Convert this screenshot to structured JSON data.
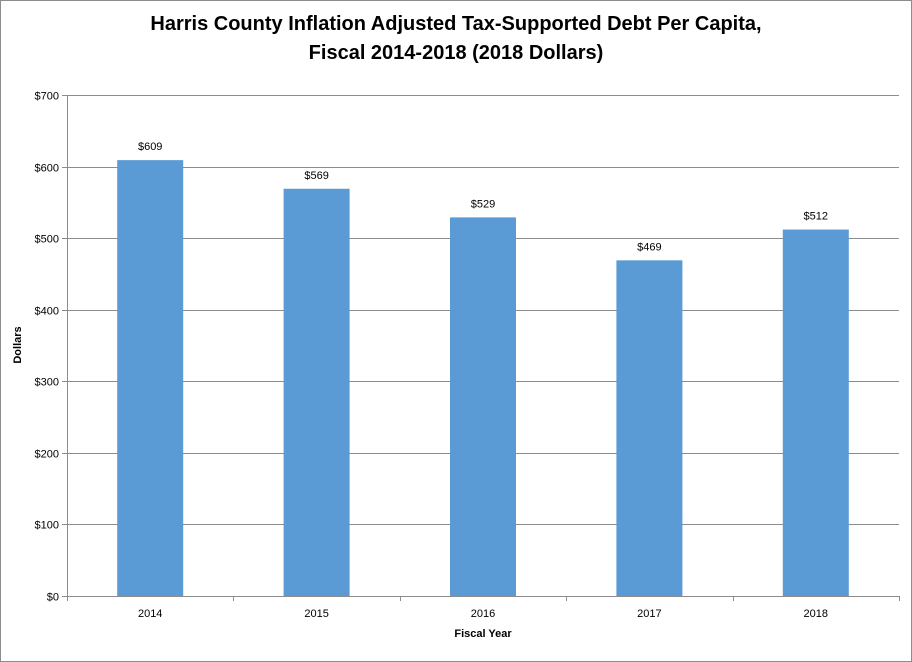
{
  "chart_data": {
    "type": "bar",
    "title_line1": "Harris County Inflation Adjusted Tax-Supported Debt Per Capita,",
    "title_line2": "Fiscal 2014-2018 (2018 Dollars)",
    "xlabel": "Fiscal Year",
    "ylabel": "Dollars",
    "categories": [
      "2014",
      "2015",
      "2016",
      "2017",
      "2018"
    ],
    "values": [
      609,
      569,
      529,
      469,
      512
    ],
    "data_labels": [
      "$609",
      "$569",
      "$529",
      "$469",
      "$512"
    ],
    "ylim": [
      0,
      700
    ],
    "y_ticks": [
      0,
      100,
      200,
      300,
      400,
      500,
      600,
      700
    ],
    "y_tick_labels": [
      "$0",
      "$100",
      "$200",
      "$300",
      "$400",
      "$500",
      "$600",
      "$700"
    ],
    "grid": true,
    "legend": "none",
    "bar_color": "#5b9bd5"
  }
}
